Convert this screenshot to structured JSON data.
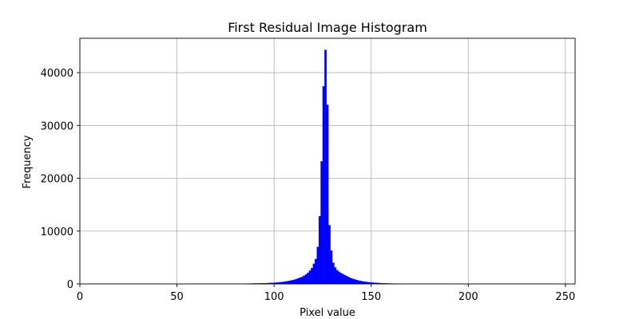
{
  "chart_data": {
    "type": "bar",
    "title": "First Residual Image Histogram",
    "xlabel": "Pixel value",
    "ylabel": "Frequency",
    "xlim": [
      0,
      255
    ],
    "ylim": [
      0,
      46500
    ],
    "xticks": [
      0,
      50,
      100,
      150,
      200,
      250
    ],
    "yticks": [
      0,
      10000,
      20000,
      30000,
      40000
    ],
    "grid": true,
    "bar_color": "#0000ff",
    "bins": [
      {
        "x": 86,
        "v": 60
      },
      {
        "x": 87,
        "v": 70
      },
      {
        "x": 88,
        "v": 70
      },
      {
        "x": 89,
        "v": 80
      },
      {
        "x": 90,
        "v": 90
      },
      {
        "x": 91,
        "v": 90
      },
      {
        "x": 92,
        "v": 100
      },
      {
        "x": 93,
        "v": 110
      },
      {
        "x": 94,
        "v": 120
      },
      {
        "x": 95,
        "v": 130
      },
      {
        "x": 96,
        "v": 140
      },
      {
        "x": 97,
        "v": 160
      },
      {
        "x": 98,
        "v": 180
      },
      {
        "x": 99,
        "v": 200
      },
      {
        "x": 100,
        "v": 230
      },
      {
        "x": 101,
        "v": 260
      },
      {
        "x": 102,
        "v": 290
      },
      {
        "x": 103,
        "v": 330
      },
      {
        "x": 104,
        "v": 370
      },
      {
        "x": 105,
        "v": 420
      },
      {
        "x": 106,
        "v": 480
      },
      {
        "x": 107,
        "v": 540
      },
      {
        "x": 108,
        "v": 620
      },
      {
        "x": 109,
        "v": 700
      },
      {
        "x": 110,
        "v": 800
      },
      {
        "x": 111,
        "v": 920
      },
      {
        "x": 112,
        "v": 1050
      },
      {
        "x": 113,
        "v": 1200
      },
      {
        "x": 114,
        "v": 1350
      },
      {
        "x": 115,
        "v": 1550
      },
      {
        "x": 116,
        "v": 1800
      },
      {
        "x": 117,
        "v": 2100
      },
      {
        "x": 118,
        "v": 2500
      },
      {
        "x": 119,
        "v": 3000
      },
      {
        "x": 120,
        "v": 3800
      },
      {
        "x": 121,
        "v": 4700
      },
      {
        "x": 122,
        "v": 7000
      },
      {
        "x": 123,
        "v": 12800
      },
      {
        "x": 124,
        "v": 23200
      },
      {
        "x": 125,
        "v": 37400
      },
      {
        "x": 126,
        "v": 44300
      },
      {
        "x": 127,
        "v": 33900
      },
      {
        "x": 128,
        "v": 11100
      },
      {
        "x": 129,
        "v": 6300
      },
      {
        "x": 130,
        "v": 4000
      },
      {
        "x": 131,
        "v": 3100
      },
      {
        "x": 132,
        "v": 2600
      },
      {
        "x": 133,
        "v": 2300
      },
      {
        "x": 134,
        "v": 2050
      },
      {
        "x": 135,
        "v": 1850
      },
      {
        "x": 136,
        "v": 1650
      },
      {
        "x": 137,
        "v": 1450
      },
      {
        "x": 138,
        "v": 1280
      },
      {
        "x": 139,
        "v": 1120
      },
      {
        "x": 140,
        "v": 980
      },
      {
        "x": 141,
        "v": 850
      },
      {
        "x": 142,
        "v": 740
      },
      {
        "x": 143,
        "v": 640
      },
      {
        "x": 144,
        "v": 560
      },
      {
        "x": 145,
        "v": 490
      },
      {
        "x": 146,
        "v": 430
      },
      {
        "x": 147,
        "v": 380
      },
      {
        "x": 148,
        "v": 330
      },
      {
        "x": 149,
        "v": 290
      },
      {
        "x": 150,
        "v": 250
      },
      {
        "x": 151,
        "v": 220
      },
      {
        "x": 152,
        "v": 190
      },
      {
        "x": 153,
        "v": 170
      },
      {
        "x": 154,
        "v": 150
      },
      {
        "x": 155,
        "v": 130
      },
      {
        "x": 156,
        "v": 110
      },
      {
        "x": 157,
        "v": 100
      },
      {
        "x": 158,
        "v": 90
      },
      {
        "x": 159,
        "v": 80
      },
      {
        "x": 160,
        "v": 70
      },
      {
        "x": 161,
        "v": 60
      },
      {
        "x": 162,
        "v": 55
      },
      {
        "x": 163,
        "v": 50
      },
      {
        "x": 164,
        "v": 45
      },
      {
        "x": 165,
        "v": 40
      }
    ]
  }
}
